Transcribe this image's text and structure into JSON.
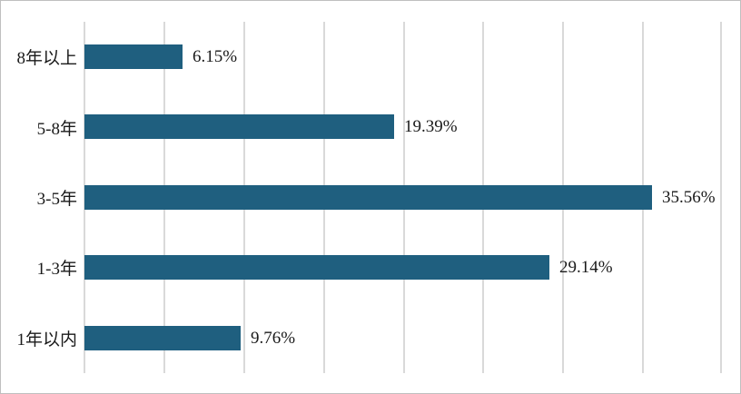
{
  "chart_data": {
    "type": "bar",
    "orientation": "horizontal",
    "title": "",
    "xlabel": "",
    "ylabel": "",
    "categories": [
      "8年以上",
      "5-8年",
      "3-5年",
      "1-3年",
      "1年以内"
    ],
    "values": [
      6.15,
      19.39,
      35.56,
      29.14,
      9.76
    ],
    "value_labels": [
      "6.15%",
      "19.39%",
      "35.56%",
      "29.14%",
      "9.76%"
    ],
    "xlim": [
      0,
      40
    ],
    "gridline_step": 5,
    "grid": true,
    "legend": "none",
    "bar_color": "#1f5f7f",
    "gridline_color": "#d9d9d9",
    "border_color": "#bfbfbf",
    "text_color": "#1a1a1a"
  }
}
